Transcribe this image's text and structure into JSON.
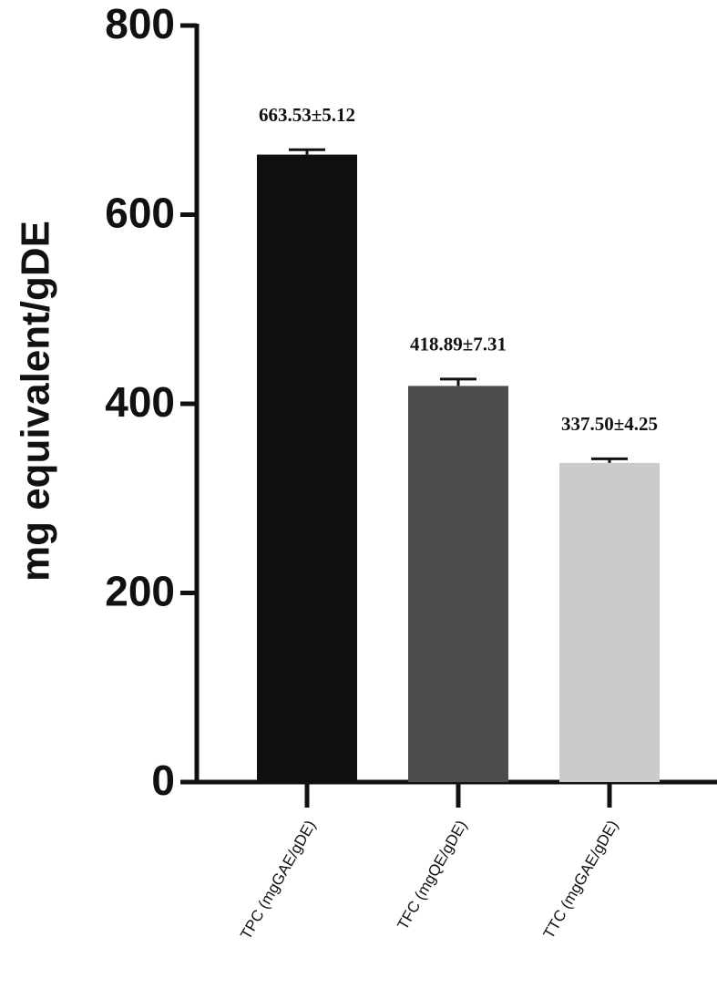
{
  "chart_data": {
    "type": "bar",
    "ylabel": "mg equivalent/gDE",
    "categories": [
      "TPC (mgGAE/gDE)",
      "TFC (mgQE/gDE)",
      "TTC (mgGAE/gDE)"
    ],
    "values": [
      663.53,
      418.89,
      337.5
    ],
    "errors": [
      5.12,
      7.31,
      4.25
    ],
    "value_labels": [
      "663.53±5.12",
      "418.89±7.31",
      "337.50±4.25"
    ],
    "colors": [
      "#0f0f0f",
      "#4d4d4d",
      "#cbcbcb"
    ],
    "ylim": [
      0,
      800
    ],
    "yticks": [
      0,
      200,
      400,
      600,
      800
    ],
    "grid": false
  }
}
